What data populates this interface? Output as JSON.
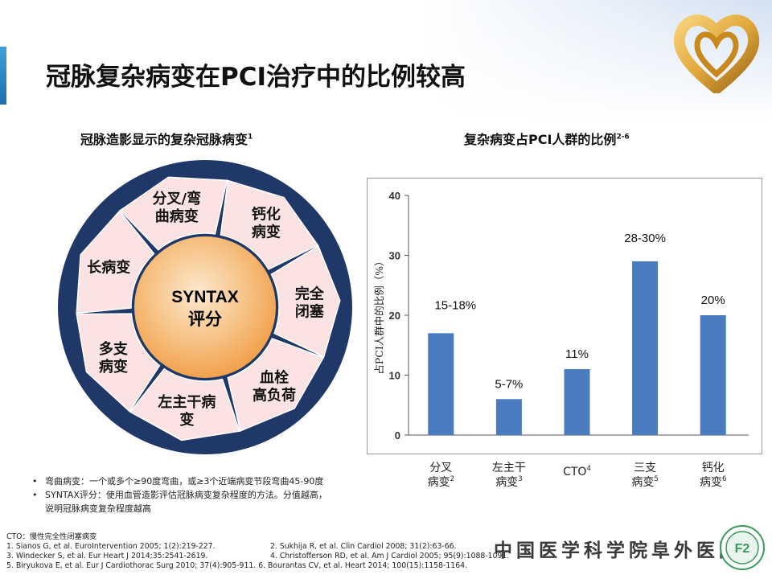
{
  "title": "冠脉复杂病变在PCI治疗中的比例较高",
  "left_panel": {
    "subtitle": "冠脉造影显示的复杂冠脉病变",
    "subtitle_sup": "1",
    "center": [
      "SYNTAX",
      "评分"
    ],
    "segments": [
      {
        "lines": [
          "分叉/弯",
          "曲病变"
        ]
      },
      {
        "lines": [
          "钙化",
          "病变"
        ]
      },
      {
        "lines": [
          "完全",
          "闭塞"
        ]
      },
      {
        "lines": [
          "血栓",
          "高负荷"
        ]
      },
      {
        "lines": [
          "左主干病",
          "变"
        ]
      },
      {
        "lines": [
          "多支",
          "病变"
        ]
      },
      {
        "lines": [
          "长病变"
        ]
      }
    ],
    "colors": {
      "ring": "#1f3868",
      "petal": "#fbe3e3",
      "center": "#f2a24e",
      "segment_text": "#111111",
      "center_text": "#000000"
    }
  },
  "right_panel": {
    "subtitle": "复杂病变占PCI人群的比例",
    "subtitle_sup": "2-6"
  },
  "chart_data": {
    "type": "bar",
    "categories": [
      {
        "lines": [
          "分叉",
          "病变"
        ],
        "sup": "2"
      },
      {
        "lines": [
          "左主干",
          "病变"
        ],
        "sup": "3"
      },
      {
        "lines": [
          "CTO"
        ],
        "sup": "4"
      },
      {
        "lines": [
          "三支",
          "病变"
        ],
        "sup": "5"
      },
      {
        "lines": [
          "钙化",
          "病变"
        ],
        "sup": "6"
      }
    ],
    "values": [
      17,
      6,
      11,
      29,
      20
    ],
    "data_labels": [
      "15-18%",
      "5-7%",
      "11%",
      "28-30%",
      "20%"
    ],
    "ylabel": "占PCI人群中的比例（%）",
    "yticks": [
      0,
      10,
      20,
      30,
      40
    ],
    "ylim": [
      0,
      40
    ],
    "bar_color": "#4a7bbf",
    "grid": false
  },
  "bullets": [
    [
      "弯曲病变：一个或多个≥90度弯曲，或≥3个近端病变节段弯曲45-90度"
    ],
    [
      "SYNTAX评分：使用血管造影评估冠脉病变复杂程度的方法。分值越高，",
      "说明冠脉病变复杂程度越高"
    ]
  ],
  "references": {
    "cto_note": "CTO：慢性完全性闭塞病变",
    "rows": [
      [
        "1. Sianos G, et al. EuroIntervention 2005; 1(2):219-227.",
        "2. Sukhija R, et al. Clin Cardiol 2008; 31(2):63-66."
      ],
      [
        "3. Windecker S,  et al. Eur Heart J 2014;35:2541-2619.",
        "4. Christofferson RD, et al. Am J Cardiol 2005; 95(9):1088-1091."
      ],
      [
        "5. Biryukova E, et al. Eur J Cardiothorac Surg 2010; 37(4):905-911. 6. Bourantas CV, et al. Heart 2014; 100(15):1158-1164.",
        ""
      ]
    ]
  },
  "hospital_name": "中国医学科学院阜外医院",
  "logo": {
    "icon": "heart-ribbon-logo-icon",
    "color": "#e0a83a"
  },
  "seal": {
    "icon": "hospital-seal-icon",
    "text": "F2",
    "color": "#3a9a5a"
  }
}
